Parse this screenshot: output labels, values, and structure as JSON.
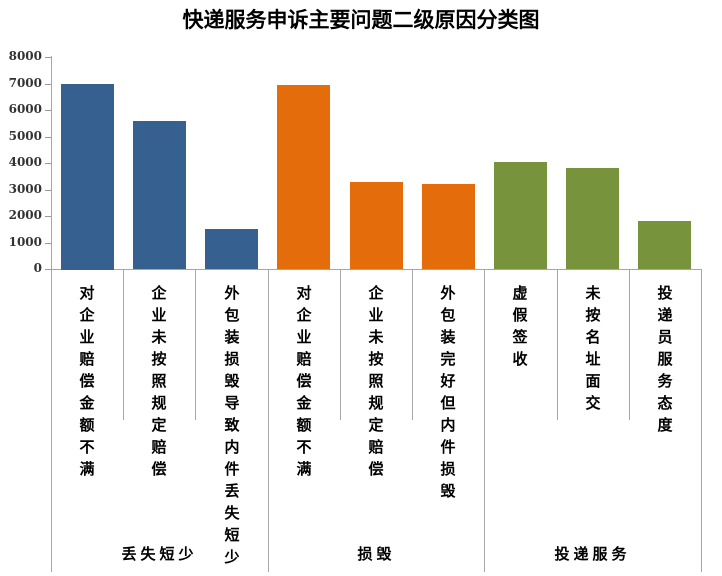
{
  "chart_data": {
    "type": "bar",
    "title": "快递服务申诉主要问题二级原因分类图",
    "xlabel": "",
    "ylabel": "",
    "ylim": [
      0,
      8000
    ],
    "yticks": [
      0,
      1000,
      2000,
      3000,
      4000,
      5000,
      6000,
      7000,
      8000
    ],
    "grid": false,
    "legend": "none",
    "groups": [
      {
        "name": "丢失短少",
        "color": "#36608f",
        "categories": [
          "对企业赔偿金额不满",
          "企业未按照规定赔偿",
          "外包装损毁导致内件丢失短少"
        ],
        "values": [
          7000,
          5600,
          1500
        ]
      },
      {
        "name": "损毁",
        "color": "#e46c0a",
        "categories": [
          "对企业赔偿金额不满",
          "企业未按照规定赔偿",
          "外包装完好但内件损毁"
        ],
        "values": [
          6950,
          3300,
          3200
        ]
      },
      {
        "name": "投递服务",
        "color": "#77933c",
        "categories": [
          "虚假签收",
          "未按名址面交",
          "投递员服务态度"
        ],
        "values": [
          4050,
          3800,
          1800
        ]
      }
    ],
    "categories": [
      "对企业赔偿金额不满",
      "企业未按照规定赔偿",
      "外包装损毁导致内件丢失短少",
      "对企业赔偿金额不满",
      "企业未按照规定赔偿",
      "外包装完好但内件损毁",
      "虚假签收",
      "未按名址面交",
      "投递员服务态度"
    ],
    "values": [
      7000,
      5600,
      1500,
      6950,
      3300,
      3200,
      4050,
      3800,
      1800
    ]
  }
}
